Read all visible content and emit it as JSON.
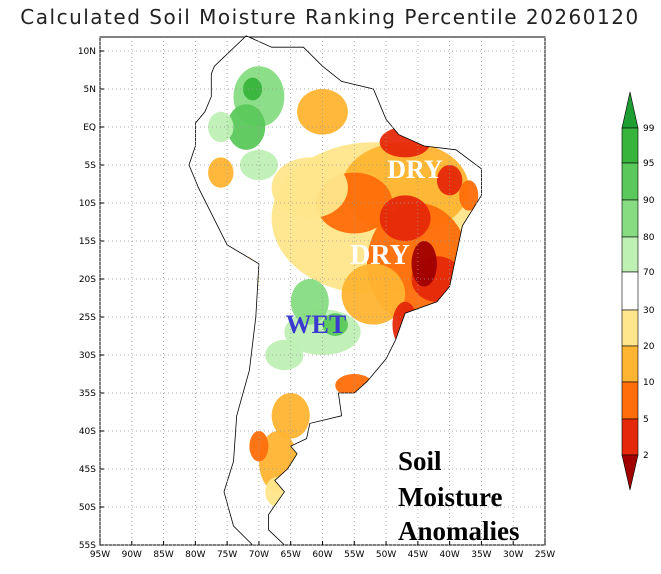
{
  "title": "Calculated Soil Moisture Ranking Percentile 20260120",
  "lat_labels": [
    "10N",
    "5N",
    "EQ",
    "5S",
    "10S",
    "15S",
    "20S",
    "25S",
    "30S",
    "35S",
    "40S",
    "45S",
    "50S",
    "55S"
  ],
  "lon_labels": [
    "95W",
    "90W",
    "85W",
    "80W",
    "75W",
    "70W",
    "65W",
    "60W",
    "55W",
    "50W",
    "45W",
    "40W",
    "35W",
    "30W",
    "25W"
  ],
  "colorbar": {
    "labels": [
      "99",
      "95",
      "90",
      "80",
      "70",
      "30",
      "20",
      "10",
      "5",
      "2"
    ],
    "colors": [
      "#1e9e32",
      "#37b43c",
      "#5ac85a",
      "#87dc82",
      "#bef0b4",
      "#ffffff",
      "#ffe68c",
      "#ffb432",
      "#ff6e0a",
      "#e6280a",
      "#a00000"
    ]
  },
  "annotations": {
    "dry_north": "DRY",
    "dry_south": "DRY",
    "wet": "WET",
    "legend_text": [
      "Soil",
      "Moisture",
      "Anomalies"
    ]
  }
}
